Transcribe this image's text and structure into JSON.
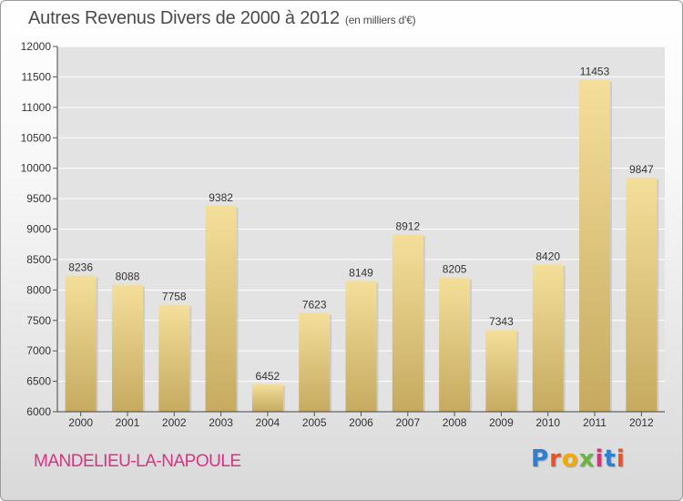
{
  "header": {
    "title": "Autres Revenus Divers de 2000 à 2012",
    "unit": "(en milliers d'€)"
  },
  "footer": {
    "commune": "MANDELIEU-LA-NAPOULE",
    "logo": [
      "P",
      "r",
      "o",
      "x",
      "i",
      "t",
      "i"
    ],
    "logo_colors": [
      "#2f7fd1",
      "#e8542a",
      "#f2a900",
      "#6cb33f",
      "#d6337c",
      "#2f7fd1",
      "#e8542a"
    ]
  },
  "chart_data": {
    "type": "bar",
    "categories": [
      "2000",
      "2001",
      "2002",
      "2003",
      "2004",
      "2005",
      "2006",
      "2007",
      "2008",
      "2009",
      "2010",
      "2011",
      "2012"
    ],
    "values": [
      8236,
      8088,
      7758,
      9382,
      6452,
      7623,
      8149,
      8912,
      8205,
      7343,
      8420,
      11453,
      9847
    ],
    "title": "Autres Revenus Divers de 2000 à 2012",
    "ylim": [
      6000,
      12000
    ],
    "yticks": [
      6000,
      6500,
      7000,
      7500,
      8000,
      8500,
      9000,
      9500,
      10000,
      10500,
      11000,
      11500,
      12000
    ],
    "grid": true,
    "colors": {
      "bar_light": "#f4df9a",
      "bar_dark": "#c6aa60",
      "grid": "#ffffff",
      "plot_bg": "#e3e3e3"
    }
  }
}
